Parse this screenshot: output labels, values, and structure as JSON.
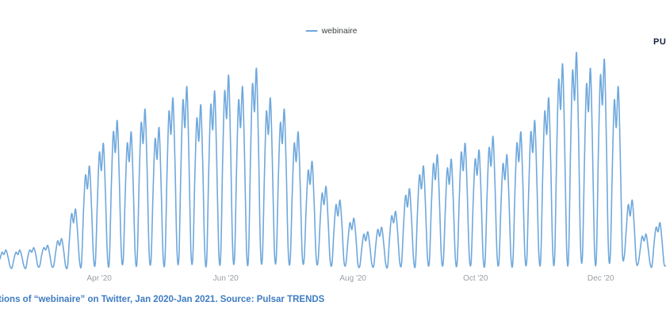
{
  "legend": {
    "label": "webinaire"
  },
  "logo_text": "PU",
  "caption_text": "tions of “webinaire” on Twitter, Jan 2020-Jan 2021. Source: Pulsar TRENDS",
  "colors": {
    "line": "#6FA8DC",
    "caption": "#3E7CC2",
    "axis_label": "#9aa0a6",
    "legend_text": "#3c4043",
    "logo": "#14213d"
  },
  "chart_data": {
    "type": "line",
    "title": "",
    "xlabel": "",
    "ylabel": "",
    "ylim": [
      0,
      100
    ],
    "grid": false,
    "y_axis": "hidden",
    "legend_position": "top-center",
    "x_ticks": [
      {
        "label": "Apr '20",
        "pos": 0.149
      },
      {
        "label": "Jun '20",
        "pos": 0.339
      },
      {
        "label": "Aug '20",
        "pos": 0.53
      },
      {
        "label": "Oct '20",
        "pos": 0.714
      },
      {
        "label": "Dec '20",
        "pos": 0.902
      }
    ],
    "series": [
      {
        "name": "webinaire",
        "start_date": "2020-02-10",
        "frequency": "daily",
        "values": [
          6,
          9,
          8,
          10,
          7,
          3,
          2,
          6,
          9,
          8,
          10,
          7,
          3,
          2,
          7,
          10,
          9,
          11,
          8,
          3,
          3,
          8,
          11,
          10,
          12,
          8,
          3,
          3,
          9,
          14,
          12,
          15,
          10,
          3,
          3,
          16,
          26,
          22,
          28,
          18,
          5,
          4,
          27,
          43,
          37,
          47,
          30,
          7,
          5,
          32,
          53,
          45,
          57,
          36,
          8,
          5,
          38,
          62,
          53,
          67,
          42,
          9,
          6,
          35,
          57,
          49,
          62,
          39,
          8,
          6,
          41,
          66,
          57,
          72,
          45,
          9,
          6,
          36,
          59,
          50,
          64,
          40,
          8,
          6,
          43,
          71,
          61,
          77,
          49,
          10,
          7,
          46,
          76,
          64,
          82,
          52,
          10,
          7,
          42,
          68,
          58,
          74,
          47,
          9,
          6,
          45,
          74,
          63,
          80,
          50,
          10,
          7,
          49,
          80,
          68,
          87,
          55,
          11,
          7,
          46,
          76,
          64,
          82,
          52,
          10,
          7,
          50,
          83,
          71,
          90,
          57,
          11,
          7,
          43,
          71,
          61,
          77,
          49,
          10,
          7,
          41,
          66,
          57,
          72,
          45,
          9,
          6,
          35,
          57,
          49,
          62,
          39,
          8,
          6,
          28,
          45,
          39,
          49,
          31,
          7,
          5,
          22,
          35,
          30,
          38,
          24,
          6,
          4,
          19,
          30,
          25,
          32,
          21,
          5,
          4,
          14,
          22,
          19,
          24,
          16,
          4,
          3,
          11,
          17,
          14,
          18,
          12,
          4,
          3,
          12,
          19,
          16,
          20,
          13,
          4,
          3,
          16,
          25,
          22,
          27,
          18,
          5,
          4,
          21,
          34,
          29,
          37,
          24,
          6,
          4,
          27,
          43,
          37,
          47,
          30,
          7,
          5,
          30,
          48,
          41,
          52,
          33,
          7,
          5,
          28,
          46,
          39,
          50,
          32,
          7,
          5,
          32,
          53,
          45,
          57,
          36,
          8,
          5,
          31,
          50,
          43,
          54,
          34,
          7,
          5,
          34,
          55,
          47,
          60,
          38,
          8,
          5,
          30,
          48,
          41,
          52,
          33,
          7,
          5,
          35,
          57,
          49,
          62,
          39,
          8,
          6,
          38,
          62,
          53,
          67,
          42,
          9,
          6,
          43,
          71,
          61,
          77,
          49,
          10,
          7,
          52,
          85,
          72,
          92,
          58,
          11,
          7,
          54,
          89,
          76,
          97,
          61,
          12,
          8,
          50,
          83,
          71,
          90,
          57,
          11,
          7,
          53,
          87,
          74,
          94,
          59,
          11,
          8,
          46,
          76,
          64,
          82,
          52,
          10,
          7,
          19,
          30,
          25,
          32,
          21,
          5,
          4,
          10,
          16,
          14,
          17,
          11,
          4,
          3,
          13,
          20,
          18,
          22,
          14,
          4,
          3
        ]
      }
    ]
  }
}
